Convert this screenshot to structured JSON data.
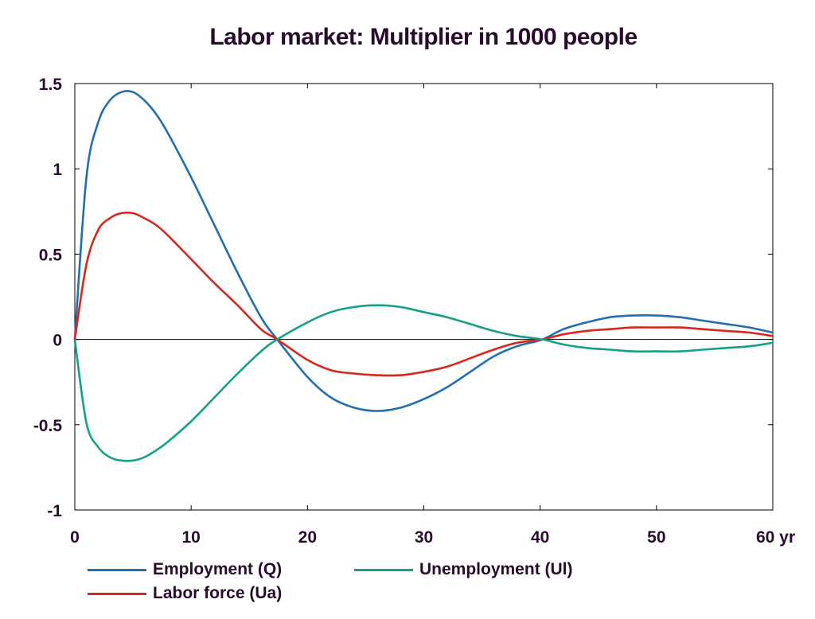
{
  "chart_data": {
    "type": "line",
    "title": "Labor market: Multiplier in 1000 people",
    "x_unit_label": "yr",
    "xlim": [
      0,
      60
    ],
    "ylim": [
      -1,
      1.5
    ],
    "x_ticks": [
      0,
      10,
      20,
      30,
      40,
      50,
      60
    ],
    "x_tick_labels": [
      "0",
      "10",
      "20",
      "30",
      "40",
      "50",
      "60 yr"
    ],
    "y_ticks": [
      1.5,
      1,
      0.5,
      0,
      -0.5,
      -1
    ],
    "y_tick_labels": [
      "1.5",
      "1",
      "0.5",
      "0",
      "-0.5",
      "-1"
    ],
    "grid": false,
    "zero_line": true,
    "legend_position": "bottom",
    "x": [
      0,
      1,
      2,
      3,
      4,
      5,
      6,
      7,
      8,
      10,
      12,
      14,
      16,
      17.4,
      20,
      22,
      24,
      26,
      28,
      30,
      32,
      34,
      36,
      38,
      40.2,
      42,
      44,
      46,
      48,
      50,
      52,
      54,
      56,
      58,
      60
    ],
    "series": [
      {
        "name": "Employment (Q)",
        "color": "#1f6fb2",
        "values": [
          0,
          0.95,
          1.27,
          1.4,
          1.45,
          1.45,
          1.4,
          1.32,
          1.21,
          0.95,
          0.67,
          0.39,
          0.13,
          0.0,
          -0.22,
          -0.34,
          -0.4,
          -0.42,
          -0.4,
          -0.35,
          -0.28,
          -0.19,
          -0.1,
          -0.04,
          0.0,
          0.06,
          0.1,
          0.13,
          0.14,
          0.14,
          0.13,
          0.11,
          0.09,
          0.07,
          0.04
        ]
      },
      {
        "name": "Unemployment (Ul)",
        "color": "#16a085",
        "values": [
          0,
          -0.49,
          -0.63,
          -0.69,
          -0.71,
          -0.71,
          -0.69,
          -0.65,
          -0.6,
          -0.48,
          -0.34,
          -0.2,
          -0.07,
          0.0,
          0.1,
          0.16,
          0.19,
          0.2,
          0.19,
          0.16,
          0.13,
          0.09,
          0.05,
          0.02,
          0.0,
          -0.03,
          -0.05,
          -0.06,
          -0.07,
          -0.07,
          -0.07,
          -0.06,
          -0.05,
          -0.04,
          -0.02
        ]
      },
      {
        "name": "Labor force (Ua)",
        "color": "#d6281c",
        "values": [
          0,
          0.44,
          0.64,
          0.71,
          0.74,
          0.74,
          0.71,
          0.67,
          0.61,
          0.47,
          0.33,
          0.2,
          0.06,
          0.0,
          -0.12,
          -0.18,
          -0.2,
          -0.21,
          -0.21,
          -0.19,
          -0.16,
          -0.11,
          -0.06,
          -0.02,
          0.0,
          0.03,
          0.05,
          0.06,
          0.07,
          0.07,
          0.07,
          0.06,
          0.05,
          0.04,
          0.02
        ]
      }
    ]
  }
}
